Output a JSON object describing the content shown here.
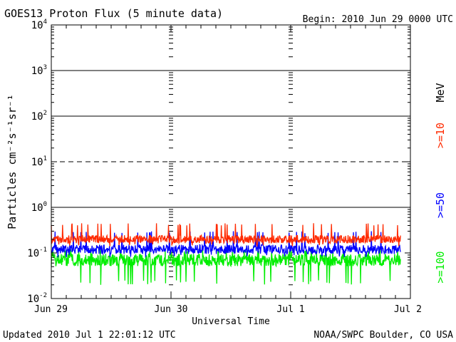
{
  "chart_data": {
    "type": "line",
    "title": "GOES13 Proton Flux (5 minute data)",
    "begin_label": "Begin: 2010 Jun 29 0000 UTC",
    "xlabel": "Universal Time",
    "ylabel": "Particles cm⁻²s⁻¹sr⁻¹",
    "y_scale": "log",
    "ylim": [
      0.01,
      10000
    ],
    "y_ticks": [
      {
        "base": "10",
        "exp": "-2"
      },
      {
        "base": "10",
        "exp": "-1"
      },
      {
        "base": "10",
        "exp": "0"
      },
      {
        "base": "10",
        "exp": "1"
      },
      {
        "base": "10",
        "exp": "2"
      },
      {
        "base": "10",
        "exp": "3"
      },
      {
        "base": "10",
        "exp": "4"
      }
    ],
    "x_ticks": [
      "Jun 29",
      "Jun 30",
      "Jul 1",
      "Jul 2"
    ],
    "x_range_days": [
      0,
      3
    ],
    "data_end_day": 2.917,
    "threshold_lines": [
      {
        "value": 1,
        "style": "solid"
      },
      {
        "value": 10,
        "style": "dashed"
      },
      {
        "value": 100,
        "style": "solid"
      },
      {
        "value": 1000,
        "style": "solid"
      }
    ],
    "unit_label": "MeV",
    "grid": false,
    "legend_position": "right",
    "series": [
      {
        "name": ">=10",
        "color": "#ff2a00",
        "typical_value": 0.2,
        "range": [
          0.14,
          0.45
        ]
      },
      {
        "name": ">=50",
        "color": "#0000ff",
        "typical_value": 0.12,
        "range": [
          0.08,
          0.3
        ]
      },
      {
        "name": ">=100",
        "color": "#00ee00",
        "typical_value": 0.07,
        "range": [
          0.02,
          0.12
        ]
      }
    ]
  },
  "footer": {
    "updated": "Updated 2010 Jul  1 22:01:12 UTC",
    "source": "NOAA/SWPC Boulder, CO USA"
  }
}
